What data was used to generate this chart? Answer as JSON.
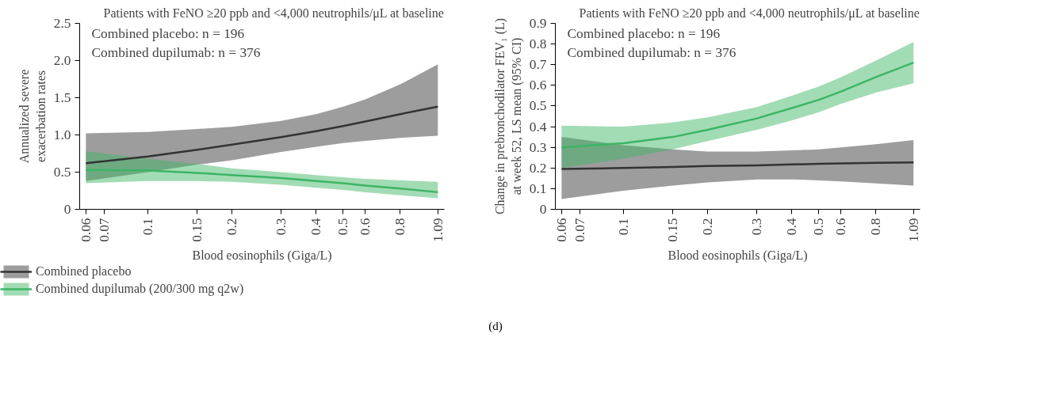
{
  "chart_data": [
    {
      "type": "line",
      "title": "Patients with FeNO ≥20 ppb and <4,000 neutrophils/μL at baseline",
      "xlabel": "Blood eosinophils (Giga/L)",
      "ylabel": "Annualized severe\nexacerbation rates",
      "log": "x",
      "grid": false,
      "legend": "bottom",
      "marker": "none",
      "line_style": "solid",
      "x": [
        0.06,
        0.1,
        0.15,
        0.2,
        0.3,
        0.4,
        0.5,
        0.6,
        0.8,
        1.09
      ],
      "xlim": [
        0.057,
        1.15
      ],
      "xticks": [
        0.06,
        0.07,
        0.1,
        0.15,
        0.2,
        0.3,
        0.4,
        0.5,
        0.6,
        0.8,
        1.09
      ],
      "ylim": [
        0,
        2.5
      ],
      "yticks": [
        0,
        {
          "value": 0.5,
          "label": "0.5"
        },
        {
          "value": 1,
          "label": "1.0"
        },
        {
          "value": 1.5,
          "label": "1.5"
        },
        {
          "value": 2,
          "label": "2.0"
        },
        {
          "value": 2.5,
          "label": "2.5"
        }
      ],
      "annotations": [
        "Combined placebo: n = 196",
        "Combined dupilumab: n = 376"
      ],
      "series": [
        {
          "name": "Combined placebo",
          "color": "#333333",
          "values": [
            0.62,
            0.71,
            0.8,
            0.87,
            0.97,
            1.05,
            1.12,
            1.18,
            1.28,
            1.38
          ],
          "lower": [
            0.38,
            0.5,
            0.6,
            0.66,
            0.77,
            0.84,
            0.89,
            0.92,
            0.96,
            0.99
          ],
          "upper": [
            1.02,
            1.04,
            1.08,
            1.11,
            1.19,
            1.28,
            1.38,
            1.48,
            1.68,
            1.95
          ]
        },
        {
          "name": "Combined dupilumab (200/300 mg q2w)",
          "color": "#3cb565",
          "values": [
            0.53,
            0.52,
            0.49,
            0.46,
            0.42,
            0.38,
            0.35,
            0.32,
            0.28,
            0.23
          ],
          "lower": [
            0.35,
            0.38,
            0.38,
            0.37,
            0.33,
            0.29,
            0.26,
            0.23,
            0.19,
            0.15
          ],
          "upper": [
            0.78,
            0.68,
            0.61,
            0.55,
            0.5,
            0.46,
            0.43,
            0.41,
            0.39,
            0.37
          ]
        }
      ]
    },
    {
      "type": "line",
      "title": "Patients with FeNO ≥20 ppb and <4,000 neutrophils/μL at baseline",
      "xlabel": "Blood eosinophils (Giga/L)",
      "ylabel": "Change in prebronchodilator FEV₁ (L)\nat week 52, LS mean (95% CI)",
      "log": "x",
      "grid": false,
      "marker": "none",
      "line_style": "solid",
      "x": [
        0.06,
        0.1,
        0.15,
        0.2,
        0.3,
        0.4,
        0.5,
        0.6,
        0.8,
        1.09
      ],
      "xlim": [
        0.057,
        1.15
      ],
      "xticks": [
        0.06,
        0.07,
        0.1,
        0.15,
        0.2,
        0.3,
        0.4,
        0.5,
        0.6,
        0.8,
        1.09
      ],
      "ylim": [
        0,
        0.9
      ],
      "yticks": [
        0,
        0.1,
        0.2,
        0.3,
        0.4,
        0.5,
        0.6,
        0.7,
        0.8,
        0.9
      ],
      "annotations": [
        "Combined placebo: n = 196",
        "Combined dupilumab: n = 376",
        "(d)"
      ],
      "series": [
        {
          "color": "#333333",
          "values": [
            0.195,
            0.2,
            0.205,
            0.21,
            0.213,
            0.217,
            0.22,
            0.222,
            0.225,
            0.227
          ],
          "lower": [
            0.05,
            0.09,
            0.115,
            0.13,
            0.145,
            0.145,
            0.14,
            0.135,
            0.125,
            0.115
          ],
          "upper": [
            0.35,
            0.31,
            0.29,
            0.28,
            0.28,
            0.285,
            0.29,
            0.3,
            0.315,
            0.335
          ]
        },
        {
          "color": "#3cb565",
          "values": [
            0.3,
            0.32,
            0.35,
            0.385,
            0.44,
            0.49,
            0.53,
            0.57,
            0.64,
            0.71
          ],
          "lower": [
            0.2,
            0.245,
            0.29,
            0.33,
            0.385,
            0.43,
            0.47,
            0.51,
            0.565,
            0.61
          ],
          "upper": [
            0.405,
            0.4,
            0.42,
            0.445,
            0.495,
            0.55,
            0.595,
            0.64,
            0.72,
            0.81
          ]
        }
      ]
    }
  ]
}
